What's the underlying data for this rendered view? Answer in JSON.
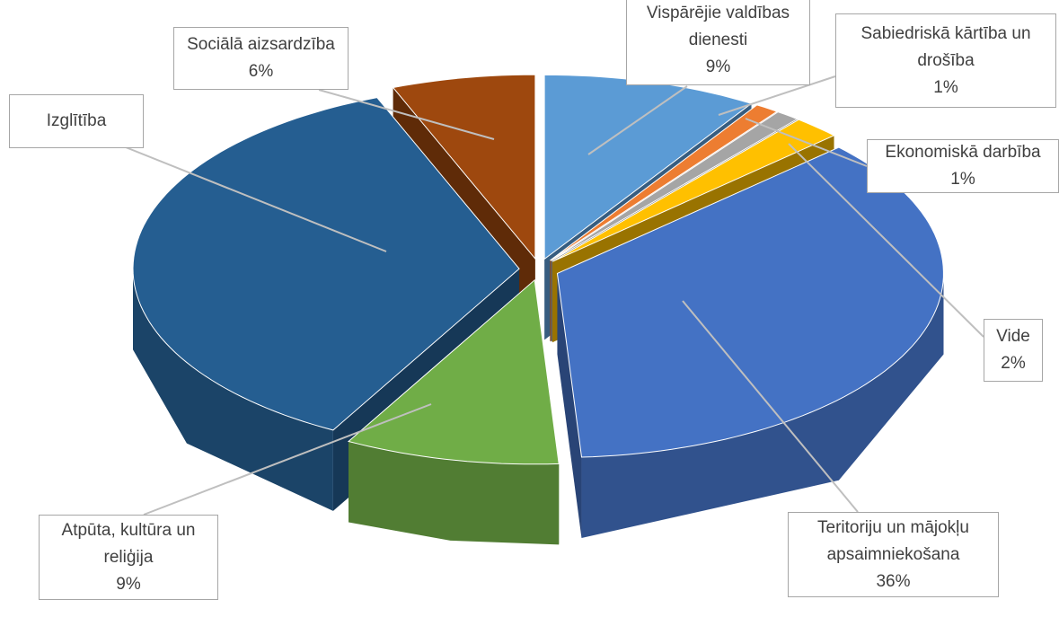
{
  "chart_data": {
    "type": "pie3d",
    "categories": [
      "Vispārējie valdības dienesti",
      "Sabiedriskā kārtība un drošība",
      "Ekonomiskā darbība",
      "Vide",
      "Teritoriju un mājokļu apsaimniekošana",
      "Atpūta, kultūra un reliģija",
      "Izglītība",
      "Sociālā aizsardzība"
    ],
    "values": [
      9,
      1,
      1,
      2,
      36,
      9,
      36,
      6
    ],
    "value_labels": [
      "9%",
      "1%",
      "1%",
      "2%",
      "36%",
      "9%",
      null,
      "6%"
    ],
    "colors": [
      "#5b9bd5",
      "#ed7d31",
      "#a5a5a5",
      "#ffc000",
      "#4472c4",
      "#70ad47",
      "#255e91",
      "#9e480e"
    ]
  }
}
